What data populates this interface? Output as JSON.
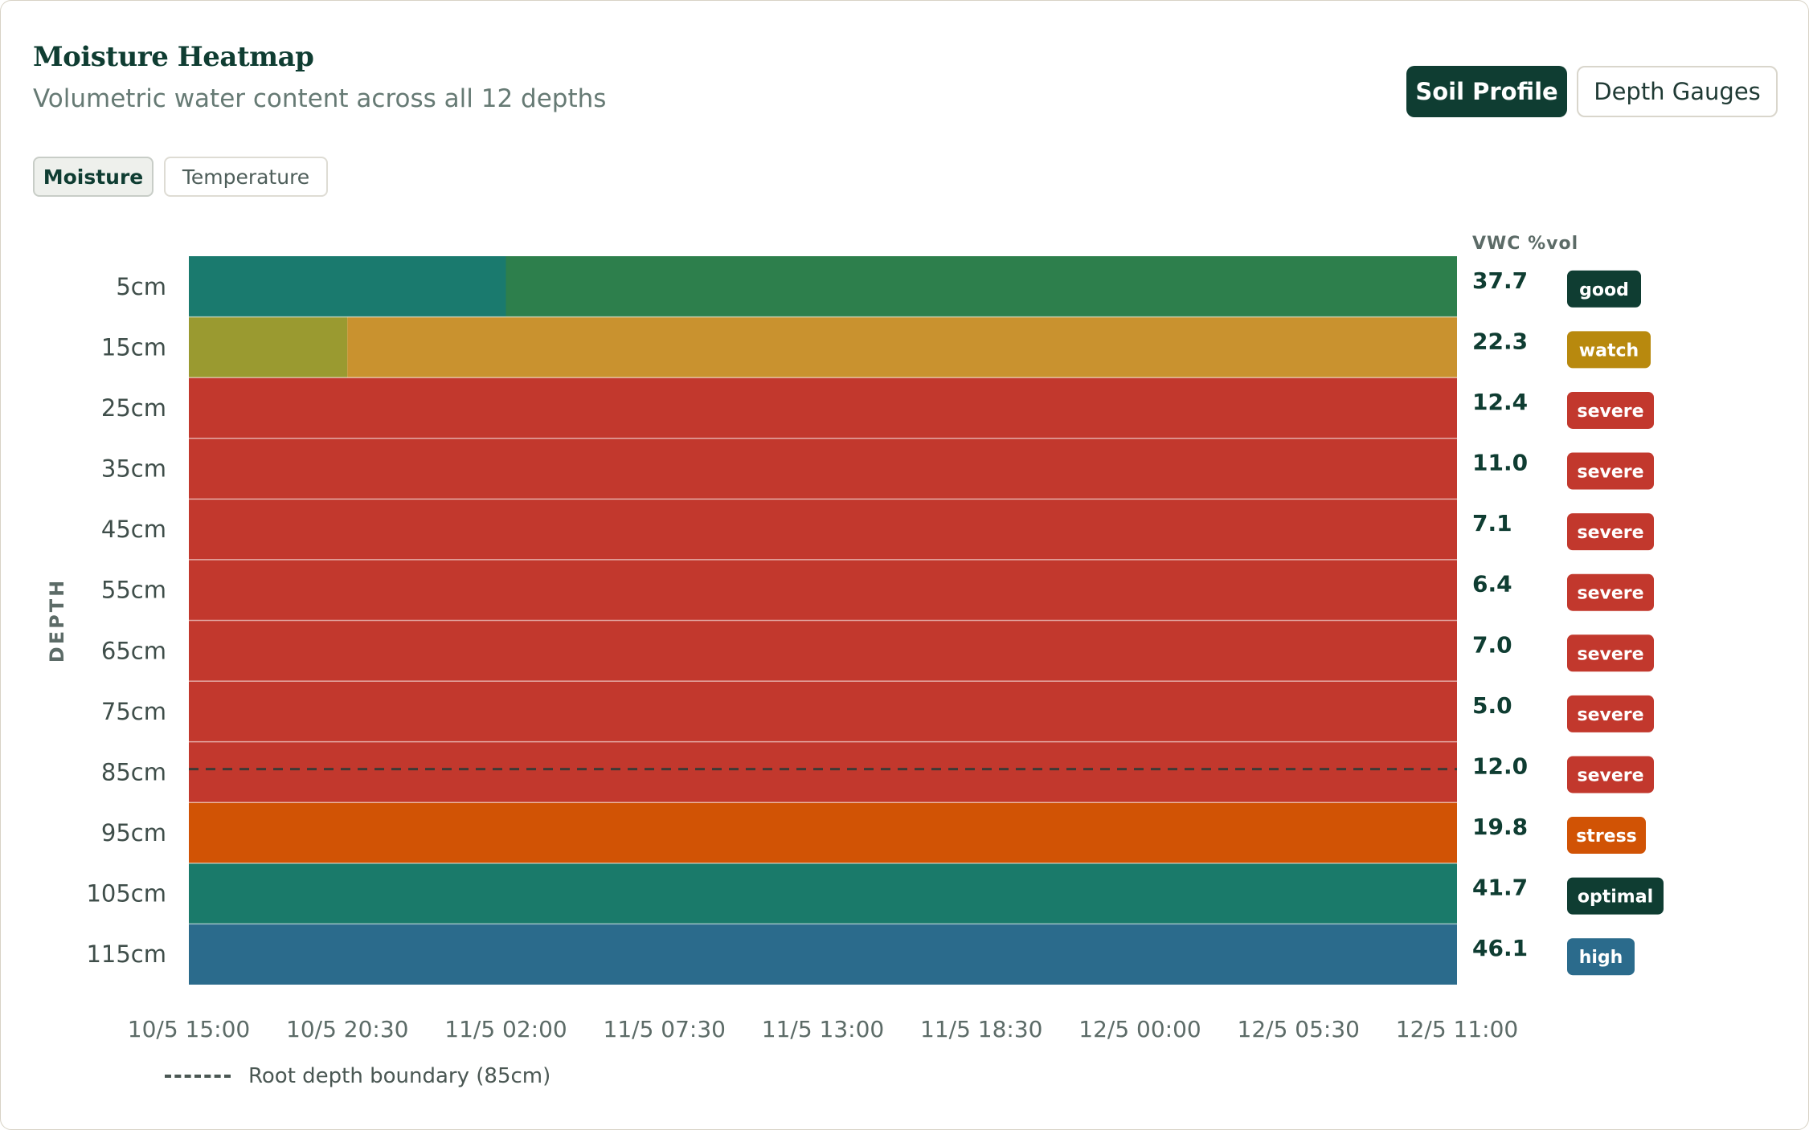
{
  "header": {
    "title": "Moisture Heatmap",
    "subtitle": "Volumetric water content across all 12 depths"
  },
  "view_toggle": {
    "active_label": "Soil Profile",
    "inactive_label": "Depth Gauges"
  },
  "metric_toggle": {
    "active_label": "Moisture",
    "inactive_label": "Temperature"
  },
  "legend": {
    "root_label": "Root depth boundary (85cm)"
  },
  "colors": {
    "good": "#2d7f4c",
    "good_early": "#1a7a6e",
    "watch": "#c9922f",
    "watch_early": "#9a9a30",
    "severe": "#c2382d",
    "stress": "#d15305",
    "optimal": "#1a7a6a",
    "high": "#2b6b8c",
    "badge_good": "#0f3d32",
    "badge_watch": "#b8890e",
    "badge_severe": "#c2382d",
    "badge_stress": "#d15305",
    "badge_optimal": "#0f3d32",
    "badge_high": "#2b6b8c",
    "text_dark": "#0f3d32",
    "axis_text": "#5c6b67"
  },
  "chart_data": {
    "type": "heatmap",
    "ylabel": "DEPTH",
    "value_header": "VWC %vol",
    "x": [
      "10/5 15:00",
      "10/5 20:30",
      "11/5 02:00",
      "11/5 07:30",
      "11/5 13:00",
      "11/5 18:30",
      "12/5 00:00",
      "12/5 05:30",
      "12/5 11:00"
    ],
    "xlim": [
      "10/5 15:00",
      "12/5 11:00"
    ],
    "root_depth": "85cm",
    "rows": [
      {
        "depth": "5cm",
        "value": "37.7",
        "status": "good",
        "segments": [
          {
            "from": "10/5 15:00",
            "to": "11/5 02:00",
            "color": "good_early"
          },
          {
            "from": "11/5 02:00",
            "to": "12/5 11:00",
            "color": "good"
          }
        ]
      },
      {
        "depth": "15cm",
        "value": "22.3",
        "status": "watch",
        "segments": [
          {
            "from": "10/5 15:00",
            "to": "10/5 20:30",
            "color": "watch_early"
          },
          {
            "from": "10/5 20:30",
            "to": "12/5 11:00",
            "color": "watch"
          }
        ]
      },
      {
        "depth": "25cm",
        "value": "12.4",
        "status": "severe",
        "segments": [
          {
            "from": "10/5 15:00",
            "to": "12/5 11:00",
            "color": "severe"
          }
        ]
      },
      {
        "depth": "35cm",
        "value": "11.0",
        "status": "severe",
        "segments": [
          {
            "from": "10/5 15:00",
            "to": "12/5 11:00",
            "color": "severe"
          }
        ]
      },
      {
        "depth": "45cm",
        "value": "7.1",
        "status": "severe",
        "segments": [
          {
            "from": "10/5 15:00",
            "to": "12/5 11:00",
            "color": "severe"
          }
        ]
      },
      {
        "depth": "55cm",
        "value": "6.4",
        "status": "severe",
        "segments": [
          {
            "from": "10/5 15:00",
            "to": "12/5 11:00",
            "color": "severe"
          }
        ]
      },
      {
        "depth": "65cm",
        "value": "7.0",
        "status": "severe",
        "segments": [
          {
            "from": "10/5 15:00",
            "to": "12/5 11:00",
            "color": "severe"
          }
        ]
      },
      {
        "depth": "75cm",
        "value": "5.0",
        "status": "severe",
        "segments": [
          {
            "from": "10/5 15:00",
            "to": "12/5 11:00",
            "color": "severe"
          }
        ]
      },
      {
        "depth": "85cm",
        "value": "12.0",
        "status": "severe",
        "segments": [
          {
            "from": "10/5 15:00",
            "to": "12/5 11:00",
            "color": "severe"
          }
        ]
      },
      {
        "depth": "95cm",
        "value": "19.8",
        "status": "stress",
        "segments": [
          {
            "from": "10/5 15:00",
            "to": "12/5 11:00",
            "color": "stress"
          }
        ]
      },
      {
        "depth": "105cm",
        "value": "41.7",
        "status": "optimal",
        "segments": [
          {
            "from": "10/5 15:00",
            "to": "12/5 11:00",
            "color": "optimal"
          }
        ]
      },
      {
        "depth": "115cm",
        "value": "46.1",
        "status": "high",
        "segments": [
          {
            "from": "10/5 15:00",
            "to": "12/5 11:00",
            "color": "high"
          }
        ]
      }
    ]
  }
}
